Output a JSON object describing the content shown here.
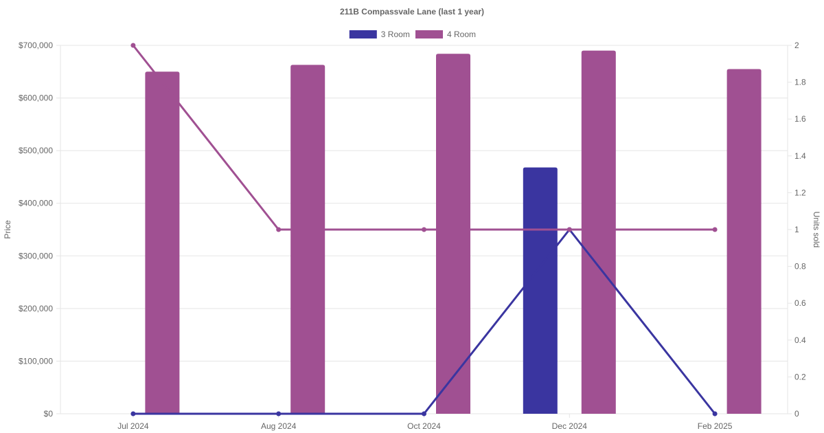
{
  "chart_data": {
    "type": "bar",
    "title": "211B Compassvale Lane (last 1 year)",
    "categories": [
      "Jul 2024",
      "Aug 2024",
      "Oct 2024",
      "Dec 2024",
      "Feb 2025"
    ],
    "ylabel": "Price",
    "y2label": "Units sold",
    "ylim": [
      0,
      700000
    ],
    "y2lim": [
      0,
      2
    ],
    "y_ticks": [
      "$0",
      "$100,000",
      "$200,000",
      "$300,000",
      "$400,000",
      "$500,000",
      "$600,000",
      "$700,000"
    ],
    "y2_ticks": [
      "0",
      "0.2",
      "0.4",
      "0.6",
      "0.8",
      "1",
      "1.2",
      "1.4",
      "1.6",
      "1.8",
      "2"
    ],
    "grid": true,
    "legend_position": "top",
    "series": [
      {
        "name": "3 Room",
        "color": "#3a35a0",
        "price": [
          null,
          null,
          null,
          468000,
          null
        ],
        "units_sold": [
          0,
          0,
          0,
          1,
          0
        ]
      },
      {
        "name": "4 Room",
        "color": "#a05092",
        "price": [
          650000,
          663000,
          684000,
          690000,
          655000
        ],
        "units_sold": [
          2,
          1,
          1,
          1,
          1
        ]
      }
    ]
  }
}
